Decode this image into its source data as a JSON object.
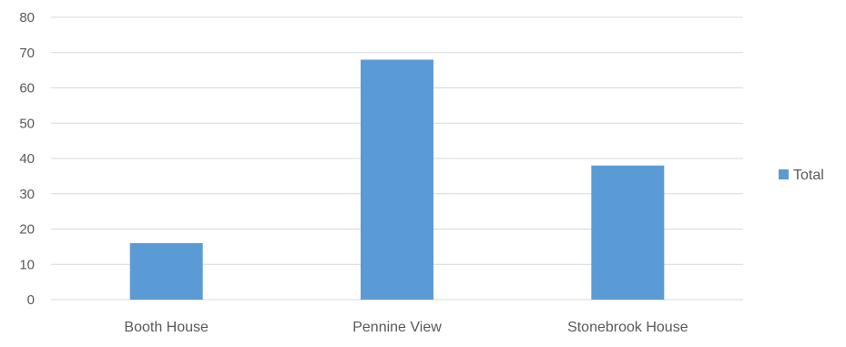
{
  "chart_data": {
    "type": "bar",
    "title": "",
    "xlabel": "",
    "ylabel": "",
    "categories": [
      "Booth House",
      "Pennine View",
      "Stonebrook House"
    ],
    "series": [
      {
        "name": "Total",
        "values": [
          16,
          68,
          38
        ],
        "color": "#5b9bd5"
      }
    ],
    "ylim": [
      0,
      80
    ],
    "yticks": [
      "0",
      "10",
      "20",
      "30",
      "40",
      "50",
      "60",
      "70",
      "80"
    ],
    "grid": true,
    "legend_position": "right",
    "colors": {
      "grid": "#d9d9d9",
      "text": "#595959"
    }
  }
}
